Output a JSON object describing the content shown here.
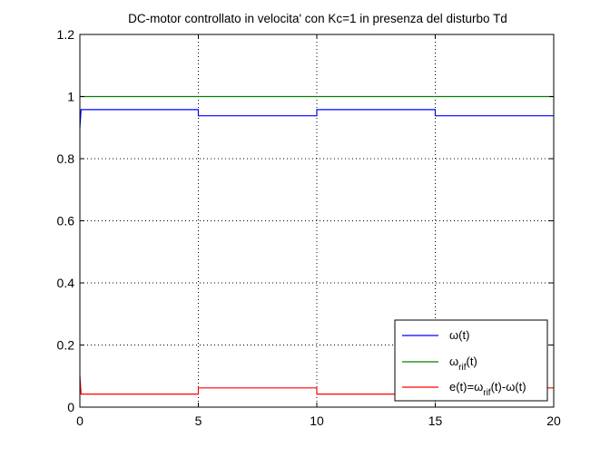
{
  "chart_data": {
    "type": "line",
    "title": "DC-motor controllato in velocita' con Kc=1 in presenza del disturbo Td",
    "xlabel": "",
    "ylabel": "",
    "xlim": [
      0,
      20
    ],
    "ylim": [
      0,
      1.2
    ],
    "xticks": [
      0,
      5,
      10,
      15,
      20
    ],
    "yticks": [
      0,
      0.2,
      0.4,
      0.6,
      0.8,
      1,
      1.2
    ],
    "xtick_labels": [
      "0",
      "5",
      "10",
      "15",
      "20"
    ],
    "ytick_labels": [
      "0",
      "0.2",
      "0.4",
      "0.6",
      "0.8",
      "1",
      "1.2"
    ],
    "grid": true,
    "legend_position": "bottom-right",
    "series": [
      {
        "name": "ω(t)",
        "legend": {
          "base": "ω(t)",
          "sub": "",
          "rest": ""
        },
        "color": "#0000ff",
        "x": [
          0,
          0.05,
          5,
          5,
          10,
          10,
          15,
          15,
          20
        ],
        "y": [
          0.9,
          0.958,
          0.958,
          0.938,
          0.938,
          0.958,
          0.958,
          0.938,
          0.938
        ]
      },
      {
        "name": "ωrif(t)",
        "legend": {
          "base": "ω",
          "sub": "rif",
          "rest": "(t)"
        },
        "color": "#008000",
        "x": [
          0,
          20
        ],
        "y": [
          1,
          1
        ]
      },
      {
        "name": "e(t)=ωrif(t)-ω(t)",
        "legend": {
          "base": "e(t)=ω",
          "sub": "rif",
          "rest": "(t)-ω(t)"
        },
        "color": "#ff0000",
        "x": [
          0,
          0.05,
          5,
          5,
          10,
          10,
          15,
          15,
          20
        ],
        "y": [
          0.1,
          0.042,
          0.042,
          0.062,
          0.062,
          0.042,
          0.042,
          0.062,
          0.062
        ]
      }
    ]
  }
}
